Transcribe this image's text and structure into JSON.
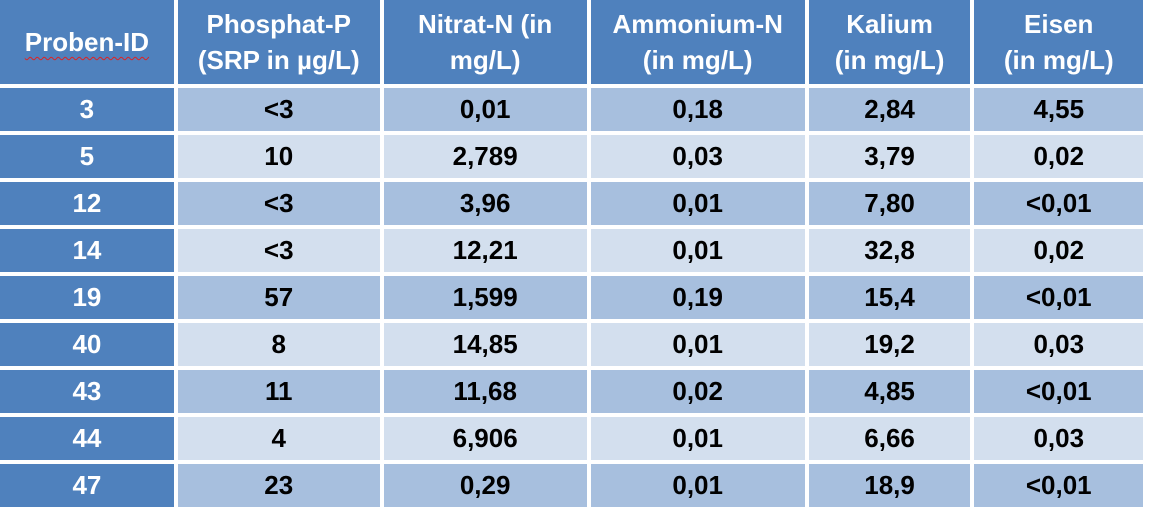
{
  "table": {
    "headers": [
      [
        "Proben-ID"
      ],
      [
        "Phosphat-P",
        "(SRP in µg/L)"
      ],
      [
        "Nitrat-N (in",
        "mg/L)"
      ],
      [
        "Ammonium-N",
        "(in mg/L)"
      ],
      [
        "Kalium",
        "(in mg/L)"
      ],
      [
        "Eisen",
        "(in mg/L)"
      ]
    ],
    "rows": [
      [
        "3",
        "<3",
        "0,01",
        "0,18",
        "2,84",
        "4,55"
      ],
      [
        "5",
        "10",
        "2,789",
        "0,03",
        "3,79",
        "0,02"
      ],
      [
        "12",
        "<3",
        "3,96",
        "0,01",
        "7,80",
        "<0,01"
      ],
      [
        "14",
        "<3",
        "12,21",
        "0,01",
        "32,8",
        "0,02"
      ],
      [
        "19",
        "57",
        "1,599",
        "0,19",
        "15,4",
        "<0,01"
      ],
      [
        "40",
        "8",
        "14,85",
        "0,01",
        "19,2",
        "0,03"
      ],
      [
        "43",
        "11",
        "11,68",
        "0,02",
        "4,85",
        "<0,01"
      ],
      [
        "44",
        "4",
        "6,906",
        "0,01",
        "6,66",
        "0,03"
      ],
      [
        "47",
        "23",
        "0,29",
        "0,01",
        "18,9",
        "<0,01"
      ]
    ]
  },
  "colors": {
    "header_bg": "#4f81bd",
    "header_text": "#ffffff",
    "row_dark": "#a7bfde",
    "row_light": "#d3dfee",
    "spellcheck_underline": "#e02020"
  }
}
